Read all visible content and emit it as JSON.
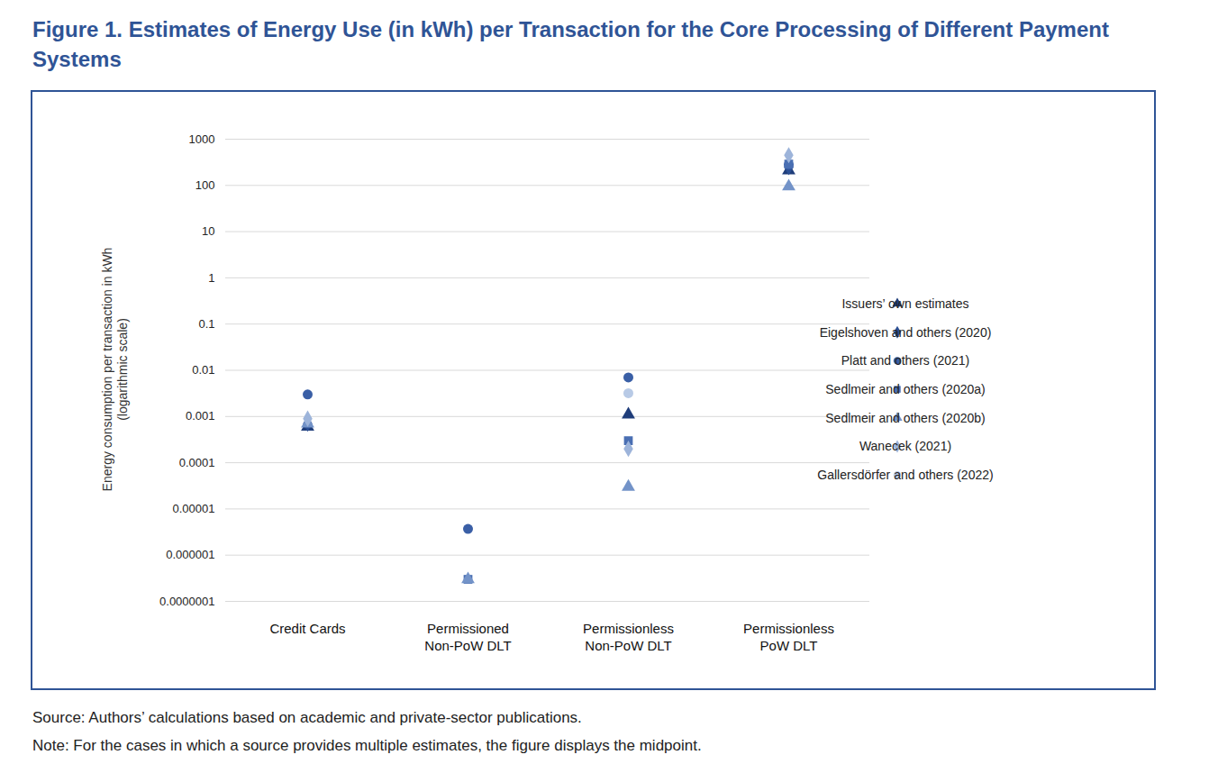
{
  "chart_data": {
    "type": "scatter",
    "title": "Figure 1. Estimates of Energy Use (in kWh) per Transaction for the Core Processing of Different Payment Systems",
    "ylabel": "Energy consumption per transaction in kWh\n(logarithmic scale)",
    "source": "Source: Authors’ calculations based on academic and private-sector publications.",
    "note": "Note: For the cases in which a source provides multiple estimates, the figure displays the midpoint.",
    "categories": [
      "Credit Cards",
      "Permissioned\nNon-PoW DLT",
      "Permissionless\nNon-PoW DLT",
      "Permissionless\nPoW DLT"
    ],
    "series": [
      {
        "name": "Issuers’ own estimates",
        "color": "#1f3d7a",
        "marker": "triangle",
        "values": [
          0.0006,
          null,
          0.0011,
          210
        ]
      },
      {
        "name": "Eigelshoven and others (2020)",
        "color": "#2b4f94",
        "marker": "diamond",
        "values": [
          0.0007,
          null,
          null,
          250
        ]
      },
      {
        "name": "Platt and others (2021)",
        "color": "#3a5fa6",
        "marker": "circle",
        "values": [
          0.003,
          3.7e-06,
          0.007,
          280
        ]
      },
      {
        "name": "Sedlmeir and others (2020a)",
        "color": "#4a6fb3",
        "marker": "square",
        "values": [
          null,
          3e-07,
          0.0003,
          290
        ]
      },
      {
        "name": "Sedlmeir and others (2020b)",
        "color": "#7393c8",
        "marker": "triangle",
        "values": [
          0.0007,
          3e-07,
          3e-05,
          95
        ]
      },
      {
        "name": "Wanecek (2021)",
        "color": "#9db4da",
        "marker": "diamond",
        "values": [
          0.0009,
          null,
          0.0002,
          450
        ]
      },
      {
        "name": "Gallersdörfer and others (2022)",
        "color": "#b8cae6",
        "marker": "circle",
        "values": [
          null,
          null,
          0.0032,
          null
        ]
      }
    ],
    "log": "y",
    "ylim": [
      1e-07,
      1000
    ],
    "yticks": [
      {
        "value": 1e-07,
        "label": "0.0000001"
      },
      1e-06,
      1e-05,
      0.0001,
      0.001,
      0.01,
      0.1,
      1,
      10,
      100,
      1000
    ],
    "grid": true,
    "legend": "right"
  }
}
